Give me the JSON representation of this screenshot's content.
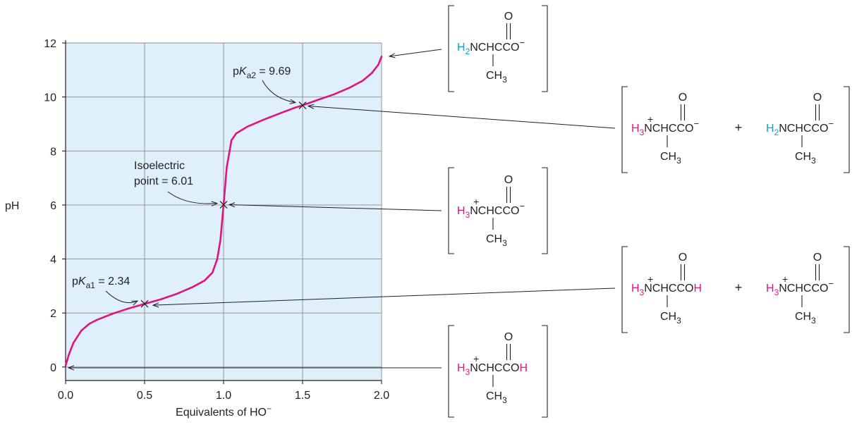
{
  "chart_data": {
    "type": "line",
    "title": "",
    "xlabel": "Equivalents of HO",
    "xlabel_charge": "−",
    "ylabel": "pH",
    "xlim": [
      0,
      2
    ],
    "ylim": [
      -0.5,
      12
    ],
    "grid": true,
    "x_ticks": [
      "0.0",
      "0.5",
      "1.0",
      "1.5",
      "2.0"
    ],
    "y_ticks": [
      "0",
      "2",
      "4",
      "6",
      "8",
      "10",
      "12"
    ],
    "colors": {
      "curve": "#e0137f",
      "plot_bg": "#dff0fa",
      "amine": "#00a6e0"
    },
    "series": [
      {
        "points": [
          [
            0.0,
            0.05
          ],
          [
            0.02,
            0.45
          ],
          [
            0.05,
            0.9
          ],
          [
            0.1,
            1.35
          ],
          [
            0.15,
            1.6
          ],
          [
            0.2,
            1.75
          ],
          [
            0.3,
            1.98
          ],
          [
            0.4,
            2.17
          ],
          [
            0.5,
            2.34
          ],
          [
            0.6,
            2.5
          ],
          [
            0.7,
            2.7
          ],
          [
            0.8,
            2.95
          ],
          [
            0.88,
            3.2
          ],
          [
            0.93,
            3.5
          ],
          [
            0.96,
            4.0
          ],
          [
            0.98,
            4.7
          ],
          [
            1.0,
            6.0
          ],
          [
            1.02,
            7.4
          ],
          [
            1.05,
            8.4
          ],
          [
            1.08,
            8.65
          ],
          [
            1.15,
            8.9
          ],
          [
            1.25,
            9.15
          ],
          [
            1.35,
            9.38
          ],
          [
            1.45,
            9.6
          ],
          [
            1.5,
            9.69
          ],
          [
            1.6,
            9.9
          ],
          [
            1.7,
            10.1
          ],
          [
            1.8,
            10.35
          ],
          [
            1.88,
            10.6
          ],
          [
            1.94,
            10.9
          ],
          [
            1.98,
            11.2
          ],
          [
            2.0,
            11.5
          ]
        ]
      }
    ],
    "annotations": [
      {
        "label": "pK",
        "sub": "a2",
        "rest": " = 9.69",
        "x": 1.5,
        "y": 9.69
      },
      {
        "label": "Isoelectric",
        "label2": "point = 6.01",
        "x": 1.0,
        "y": 6.01
      },
      {
        "label": "pK",
        "sub": "a1",
        "rest": " = 2.34",
        "x": 0.5,
        "y": 2.34
      }
    ],
    "structures": [
      {
        "point_x": 2.0,
        "point_y": 11.5,
        "species": [
          {
            "prefix": "H",
            "sub": "2",
            "prefix_color": "amine",
            "plus": false,
            "tail": "CO",
            "tail_charge": "−",
            "tail_color": ""
          }
        ]
      },
      {
        "point_x": 1.5,
        "point_y": 9.69,
        "species": [
          {
            "prefix": "H",
            "sub": "3",
            "prefix_color": "curve",
            "plus": true,
            "tail": "CO",
            "tail_charge": "−",
            "tail_color": ""
          },
          {
            "prefix": "H",
            "sub": "2",
            "prefix_color": "amine",
            "plus": false,
            "tail": "CO",
            "tail_charge": "−",
            "tail_color": ""
          }
        ]
      },
      {
        "point_x": 1.0,
        "point_y": 6.01,
        "species": [
          {
            "prefix": "H",
            "sub": "3",
            "prefix_color": "curve",
            "plus": true,
            "tail": "CO",
            "tail_charge": "−",
            "tail_color": ""
          }
        ]
      },
      {
        "point_x": 0.5,
        "point_y": 2.34,
        "species": [
          {
            "prefix": "H",
            "sub": "3",
            "prefix_color": "curve",
            "plus": true,
            "tail": "CO",
            "tail_charge": "",
            "tail_color": "",
            "tail_h": "H"
          },
          {
            "prefix": "H",
            "sub": "3",
            "prefix_color": "curve",
            "plus": true,
            "tail": "CO",
            "tail_charge": "−",
            "tail_color": ""
          }
        ]
      },
      {
        "point_x": 0.0,
        "point_y": 0.05,
        "species": [
          {
            "prefix": "H",
            "sub": "3",
            "prefix_color": "curve",
            "plus": true,
            "tail": "CO",
            "tail_charge": "",
            "tail_color": "",
            "tail_h": "H"
          }
        ]
      }
    ],
    "chem": {
      "core": "NCHC",
      "carbonyl": "O",
      "methyl": "CH",
      "methyl_sub": "3",
      "plus_sign": "+",
      "plus_join": "+"
    }
  }
}
